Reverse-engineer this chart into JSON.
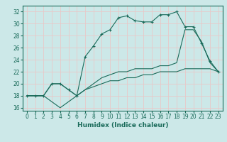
{
  "xlabel": "Humidex (Indice chaleur)",
  "bg_color": "#cce8e8",
  "grid_color": "#e8c8c8",
  "line_color": "#1a6b5a",
  "xlim": [
    -0.5,
    23.5
  ],
  "ylim": [
    15.5,
    33
  ],
  "xticks": [
    0,
    1,
    2,
    3,
    4,
    5,
    6,
    7,
    8,
    9,
    10,
    11,
    12,
    13,
    14,
    15,
    16,
    17,
    18,
    19,
    20,
    21,
    22,
    23
  ],
  "yticks": [
    16,
    18,
    20,
    22,
    24,
    26,
    28,
    30,
    32
  ],
  "line1_x": [
    0,
    1,
    2,
    3,
    4,
    5,
    6,
    7,
    8,
    9,
    10,
    11,
    12,
    13,
    14,
    15,
    16,
    17,
    18,
    19,
    20,
    21,
    22,
    23
  ],
  "line1_y": [
    18,
    18,
    18,
    17,
    16,
    17,
    18,
    19,
    19.5,
    20,
    20.5,
    20.5,
    21,
    21,
    21.5,
    21.5,
    22,
    22,
    22,
    22.5,
    22.5,
    22.5,
    22.5,
    22
  ],
  "line2_x": [
    0,
    1,
    2,
    3,
    4,
    5,
    6,
    7,
    8,
    9,
    10,
    11,
    12,
    13,
    14,
    15,
    16,
    17,
    18,
    19,
    20,
    21,
    22,
    23
  ],
  "line2_y": [
    18,
    18,
    18,
    20,
    20,
    19,
    18,
    19,
    20,
    21,
    21.5,
    22,
    22,
    22.5,
    22.5,
    22.5,
    23,
    23,
    23.5,
    29,
    29,
    27,
    23.5,
    22
  ],
  "line3_x": [
    0,
    1,
    2,
    3,
    4,
    5,
    6,
    7,
    8,
    9,
    10,
    11,
    12,
    13,
    14,
    15,
    16,
    17,
    18,
    19,
    20,
    21,
    22,
    23
  ],
  "line3_y": [
    18,
    18,
    18,
    20,
    20,
    19,
    18,
    24.5,
    26.3,
    28.3,
    29,
    31,
    31.3,
    30.5,
    30.3,
    30.3,
    31.5,
    31.5,
    32,
    29.5,
    29.5,
    26.7,
    23.8,
    22
  ],
  "tick_fontsize": 5.5,
  "xlabel_fontsize": 6.5
}
